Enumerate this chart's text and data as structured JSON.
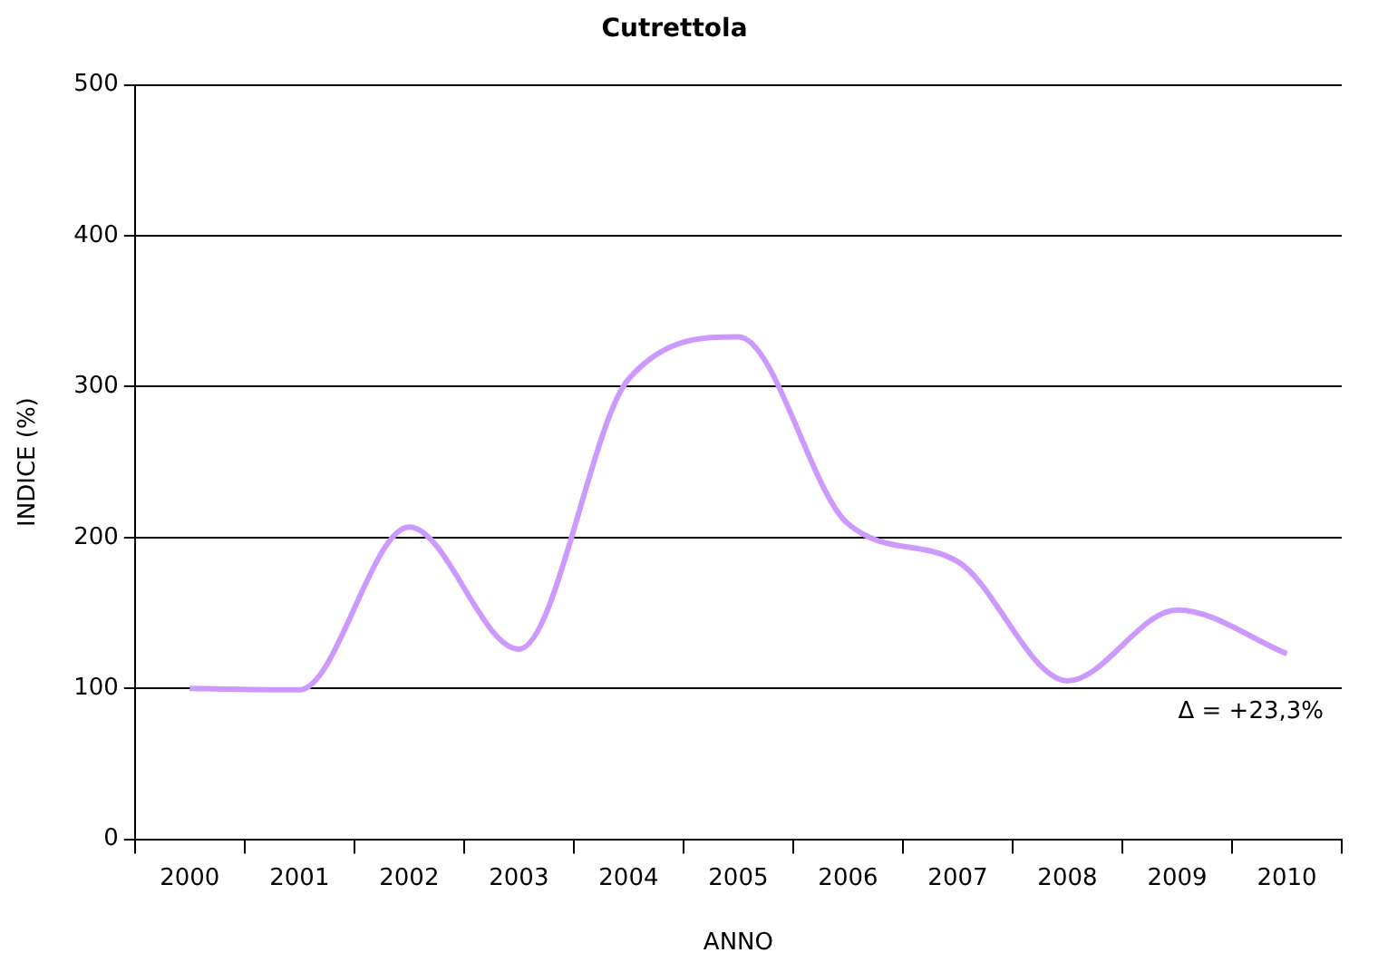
{
  "chart_data": {
    "type": "line",
    "title": "Cutrettola",
    "xlabel": "ANNO",
    "ylabel": "INDICE (%)",
    "categories": [
      "2000",
      "2001",
      "2002",
      "2003",
      "2004",
      "2005",
      "2006",
      "2007",
      "2008",
      "2009",
      "2010"
    ],
    "series": [
      {
        "color": "#cc99ff",
        "values": [
          100,
          99,
          207,
          126,
          305,
          333,
          209,
          184,
          105,
          152,
          123
        ]
      }
    ],
    "ylim": [
      0,
      500
    ],
    "yticks": [
      0,
      100,
      200,
      300,
      400,
      500
    ],
    "grid": "y",
    "legend": false,
    "marker": "none",
    "line_style": "solid",
    "annotations": [
      "Δ = +23,3%"
    ]
  }
}
